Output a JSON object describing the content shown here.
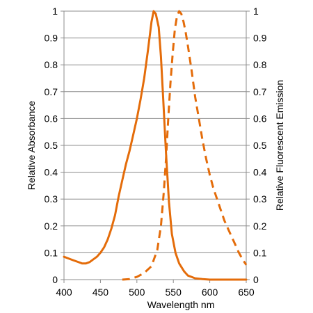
{
  "chart_data": {
    "type": "line",
    "xlabel": "Wavelength nm",
    "ylabel_left": "Relative Absorbance",
    "ylabel_right": "Relative Fluorescent Emission",
    "xlim": [
      400,
      650
    ],
    "ylim": [
      0,
      1
    ],
    "ylim_right": [
      0,
      1
    ],
    "x_ticks": [
      400,
      450,
      500,
      550,
      600,
      650
    ],
    "y_ticks": [
      0,
      0.1,
      0.2,
      0.3,
      0.4,
      0.5,
      0.6,
      0.7,
      0.8,
      0.9,
      1
    ],
    "y_tick_labels": [
      "0",
      "0.1",
      "0.2",
      "0.3",
      "0.4",
      "0.5",
      "0.6",
      "0.7",
      "0.8",
      "0.9",
      "1"
    ],
    "grid": "horizontal",
    "legend": "none",
    "series": [
      {
        "style": "solid",
        "axis": "left",
        "color": "#E46C0A",
        "points": [
          [
            400,
            0.085
          ],
          [
            405,
            0.08
          ],
          [
            410,
            0.075
          ],
          [
            415,
            0.07
          ],
          [
            420,
            0.065
          ],
          [
            425,
            0.06
          ],
          [
            430,
            0.06
          ],
          [
            435,
            0.065
          ],
          [
            440,
            0.075
          ],
          [
            445,
            0.085
          ],
          [
            450,
            0.1
          ],
          [
            455,
            0.12
          ],
          [
            460,
            0.15
          ],
          [
            465,
            0.19
          ],
          [
            470,
            0.24
          ],
          [
            475,
            0.31
          ],
          [
            480,
            0.37
          ],
          [
            485,
            0.43
          ],
          [
            490,
            0.48
          ],
          [
            495,
            0.54
          ],
          [
            500,
            0.6
          ],
          [
            505,
            0.67
          ],
          [
            510,
            0.75
          ],
          [
            515,
            0.85
          ],
          [
            520,
            0.96
          ],
          [
            523,
            1.0
          ],
          [
            526,
            0.99
          ],
          [
            530,
            0.94
          ],
          [
            533,
            0.83
          ],
          [
            536,
            0.68
          ],
          [
            540,
            0.47
          ],
          [
            544,
            0.29
          ],
          [
            548,
            0.17
          ],
          [
            553,
            0.1
          ],
          [
            558,
            0.06
          ],
          [
            565,
            0.03
          ],
          [
            570,
            0.015
          ],
          [
            575,
            0.01
          ],
          [
            580,
            0.005
          ],
          [
            590,
            0.002
          ],
          [
            600,
            0.0
          ],
          [
            625,
            0.0
          ],
          [
            650,
            0.0
          ]
        ]
      },
      {
        "style": "dashed",
        "axis": "right",
        "color": "#E46C0A",
        "points": [
          [
            480,
            0.0
          ],
          [
            490,
            0.002
          ],
          [
            500,
            0.01
          ],
          [
            510,
            0.025
          ],
          [
            520,
            0.05
          ],
          [
            528,
            0.11
          ],
          [
            533,
            0.2
          ],
          [
            537,
            0.33
          ],
          [
            540,
            0.45
          ],
          [
            543,
            0.6
          ],
          [
            546,
            0.73
          ],
          [
            549,
            0.84
          ],
          [
            552,
            0.93
          ],
          [
            555,
            0.98
          ],
          [
            558,
            1.0
          ],
          [
            561,
            0.99
          ],
          [
            564,
            0.96
          ],
          [
            567,
            0.92
          ],
          [
            570,
            0.87
          ],
          [
            575,
            0.78
          ],
          [
            580,
            0.68
          ],
          [
            585,
            0.6
          ],
          [
            590,
            0.52
          ],
          [
            595,
            0.45
          ],
          [
            600,
            0.39
          ],
          [
            605,
            0.34
          ],
          [
            610,
            0.3
          ],
          [
            615,
            0.26
          ],
          [
            620,
            0.22
          ],
          [
            625,
            0.19
          ],
          [
            630,
            0.16
          ],
          [
            635,
            0.13
          ],
          [
            640,
            0.1
          ],
          [
            645,
            0.075
          ],
          [
            650,
            0.055
          ]
        ]
      }
    ]
  }
}
